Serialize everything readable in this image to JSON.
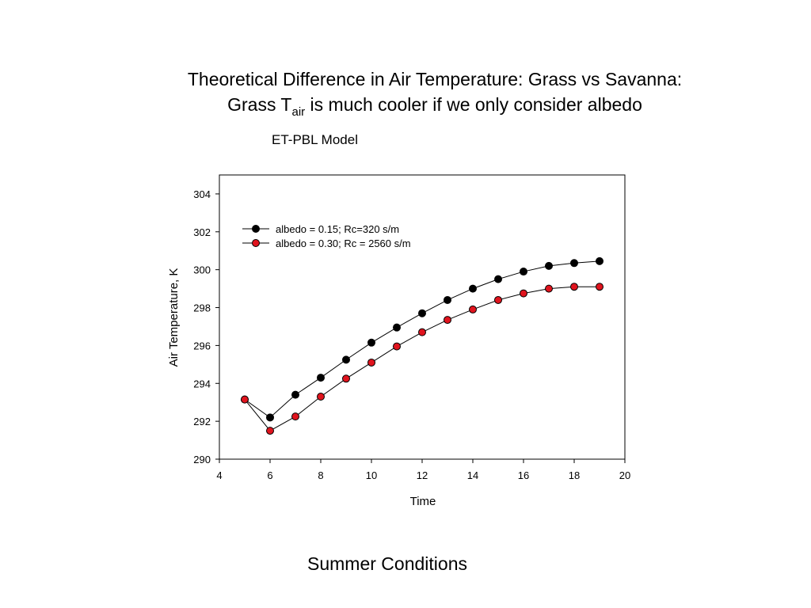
{
  "title": {
    "line1": "Theoretical Difference in Air Temperature: Grass vs Savanna:",
    "line2_pre": "Grass T",
    "line2_sub": "air",
    "line2_post": " is much cooler if we only consider albedo"
  },
  "subtitle": "ET-PBL Model",
  "footer": "Summer Conditions",
  "chart_data": {
    "type": "line",
    "xlabel": "Time",
    "ylabel": "Air Temperature, K",
    "xlim": [
      4,
      20
    ],
    "ylim": [
      290,
      305
    ],
    "xticks": [
      4,
      6,
      8,
      10,
      12,
      14,
      16,
      18,
      20
    ],
    "yticks": [
      290,
      292,
      294,
      296,
      298,
      300,
      302,
      304
    ],
    "grid": false,
    "legend_position": "top-left",
    "x": [
      5,
      6,
      7,
      8,
      9,
      10,
      11,
      12,
      13,
      14,
      15,
      16,
      17,
      18,
      19
    ],
    "series": [
      {
        "name": "albedo = 0.15; Rc=320 s/m",
        "color": "#000000",
        "values": [
          293.15,
          292.2,
          293.4,
          294.3,
          295.25,
          296.15,
          296.95,
          297.7,
          298.4,
          299.0,
          299.5,
          299.9,
          300.2,
          300.35,
          300.45
        ]
      },
      {
        "name": "albedo = 0.30; Rc = 2560 s/m",
        "color": "#e0141e",
        "values": [
          293.15,
          291.5,
          292.25,
          293.3,
          294.25,
          295.1,
          295.95,
          296.7,
          297.35,
          297.9,
          298.4,
          298.75,
          299.0,
          299.1,
          299.1
        ]
      }
    ]
  }
}
